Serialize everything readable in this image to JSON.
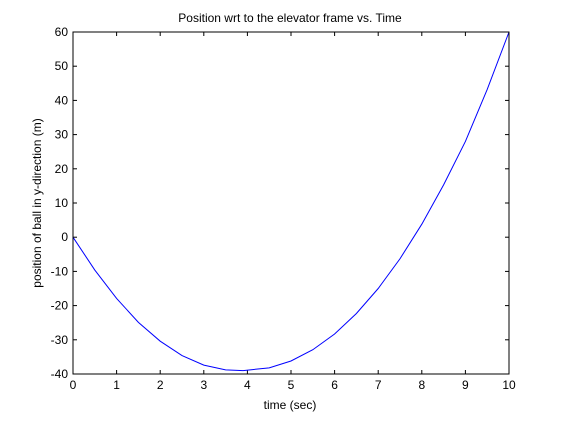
{
  "chart_data": {
    "type": "line",
    "title": "Position wrt to the elevator frame vs. Time",
    "xlabel": "time (sec)",
    "ylabel": "position of ball in y-direction (m)",
    "xlim": [
      0,
      10
    ],
    "ylim": [
      -40,
      60
    ],
    "xticks": [
      0,
      1,
      2,
      3,
      4,
      5,
      6,
      7,
      8,
      9,
      10
    ],
    "yticks": [
      -40,
      -30,
      -20,
      -10,
      0,
      10,
      20,
      30,
      40,
      50,
      60
    ],
    "grid": false,
    "legend": "none",
    "series": [
      {
        "color": "#0000ff",
        "x": [
          0,
          0.5,
          1,
          1.5,
          2,
          2.5,
          3,
          3.5,
          3.9,
          4.5,
          5,
          5.5,
          6,
          6.5,
          7,
          7.5,
          8,
          8.5,
          9,
          9.5,
          10
        ],
        "y": [
          0,
          -9.6,
          -17.9,
          -24.9,
          -30.4,
          -34.6,
          -37.4,
          -38.8,
          -39.0,
          -38.2,
          -36.2,
          -32.9,
          -28.3,
          -22.3,
          -15.0,
          -6.3,
          3.8,
          15.3,
          28.0,
          43.2,
          60.0
        ]
      }
    ]
  }
}
